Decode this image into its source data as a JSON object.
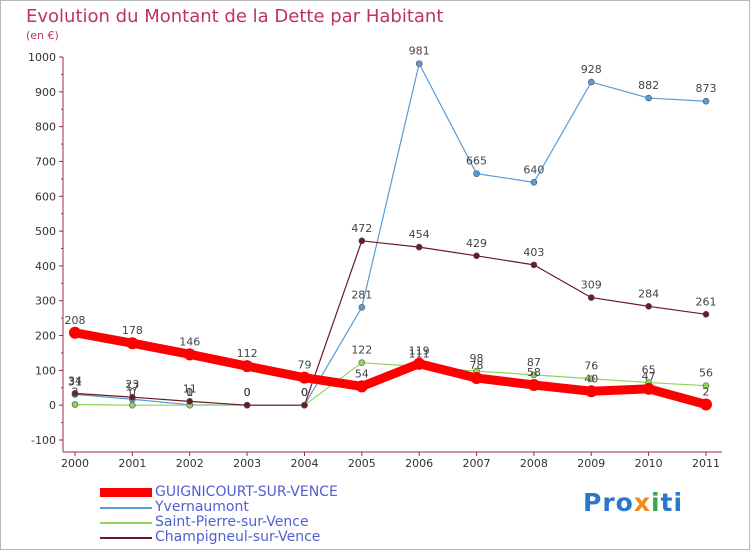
{
  "header": {
    "title": "Evolution du Montant de la Dette par Habitant",
    "subtitle": "(en €)"
  },
  "logo": {
    "parts": [
      "Pro",
      "x",
      "i",
      "ti"
    ],
    "colors": [
      "#2a78c8",
      "#f08a1c",
      "#39a84a",
      "#2a78c8"
    ]
  },
  "chart_data": {
    "type": "line",
    "title": "Evolution du Montant de la Dette par Habitant",
    "subtitle": "(en €)",
    "xlabel": "",
    "ylabel": "",
    "x": [
      "2000",
      "2001",
      "2002",
      "2003",
      "2004",
      "2005",
      "2006",
      "2007",
      "2008",
      "2009",
      "2010",
      "2011"
    ],
    "ylim": [
      -100,
      1000
    ],
    "yticks": [
      -100,
      0,
      100,
      200,
      300,
      400,
      500,
      600,
      700,
      800,
      900,
      1000
    ],
    "grid": false,
    "legend_position": "bottom-left",
    "series": [
      {
        "name": "GUIGNICOURT-SUR-VENCE",
        "color": "#ff0000",
        "emphasis": true,
        "values": [
          208,
          178,
          146,
          112,
          79,
          54,
          119,
          78,
          58,
          40,
          47,
          2
        ],
        "labels": [
          "208",
          "178",
          "146",
          "112",
          "79",
          "54",
          "119",
          "78",
          "58",
          "40",
          "47",
          "2"
        ]
      },
      {
        "name": "Yvernaumont",
        "color": "#5b9bd5",
        "emphasis": false,
        "values": [
          31,
          17,
          1,
          0,
          0,
          281,
          981,
          665,
          640,
          928,
          882,
          873
        ],
        "labels": [
          "31",
          "17",
          "1",
          "0",
          "0",
          "281",
          "981",
          "665",
          "640",
          "928",
          "882",
          "873"
        ]
      },
      {
        "name": "Saint-Pierre-sur-Vence",
        "color": "#8ed65a",
        "emphasis": false,
        "values": [
          2,
          0,
          0,
          0,
          0,
          122,
          111,
          98,
          87,
          76,
          65,
          56
        ],
        "labels": [
          "2",
          "0",
          "0",
          "0",
          "0",
          "122",
          "111",
          "98",
          "87",
          "76",
          "65",
          "56"
        ]
      },
      {
        "name": "Champigneul-sur-Vence",
        "color": "#6b1a24",
        "emphasis": false,
        "values": [
          34,
          23,
          11,
          0,
          0,
          472,
          454,
          429,
          403,
          309,
          284,
          261
        ],
        "labels": [
          "34",
          "23",
          "11",
          "0",
          "0",
          "472",
          "454",
          "429",
          "403",
          "309",
          "284",
          "261"
        ]
      }
    ]
  }
}
